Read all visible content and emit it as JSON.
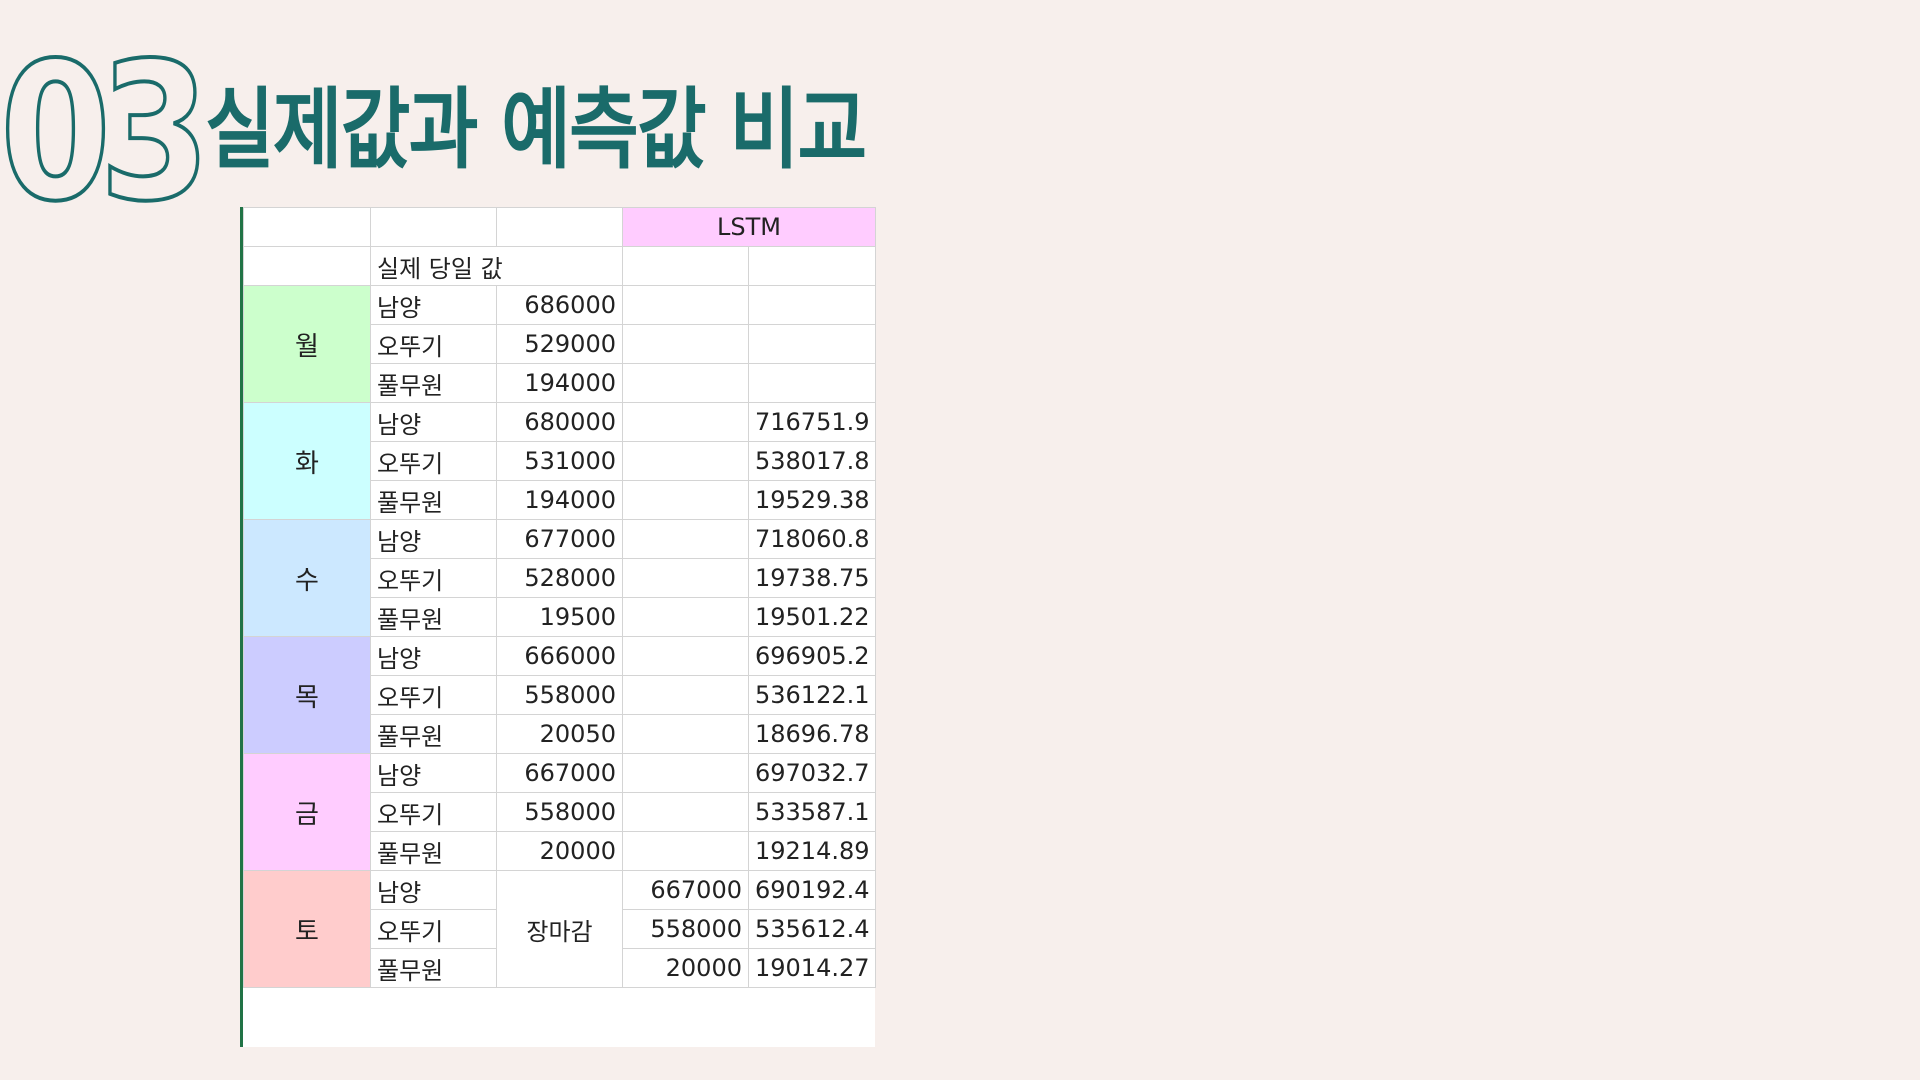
{
  "header": {
    "number": "03",
    "title": "실제값과 예측값 비교"
  },
  "colors": {
    "background": "#f7efec",
    "accent": "#1a6b6a",
    "lstm_header": "#ffccff",
    "mon": "#ccffcc",
    "tue": "#ccffff",
    "wed": "#cce8ff",
    "thu": "#ccccff",
    "fri": "#ffccff",
    "sat": "#ffcccc"
  },
  "table": {
    "lstm_label": "LSTM",
    "actual_label": "실제 당일 값",
    "closed_label": "장마감",
    "days": [
      {
        "day": "월",
        "rows": [
          {
            "company": "남양",
            "actual": "686000",
            "col4": "",
            "lstm": ""
          },
          {
            "company": "오뚜기",
            "actual": "529000",
            "col4": "",
            "lstm": ""
          },
          {
            "company": "풀무원",
            "actual": "194000",
            "col4": "",
            "lstm": ""
          }
        ]
      },
      {
        "day": "화",
        "rows": [
          {
            "company": "남양",
            "actual": "680000",
            "col4": "",
            "lstm": "716751.9"
          },
          {
            "company": "오뚜기",
            "actual": "531000",
            "col4": "",
            "lstm": "538017.8"
          },
          {
            "company": "풀무원",
            "actual": "194000",
            "col4": "",
            "lstm": "19529.38"
          }
        ]
      },
      {
        "day": "수",
        "rows": [
          {
            "company": "남양",
            "actual": "677000",
            "col4": "",
            "lstm": "718060.8"
          },
          {
            "company": "오뚜기",
            "actual": "528000",
            "col4": "",
            "lstm": "19738.75"
          },
          {
            "company": "풀무원",
            "actual": "19500",
            "col4": "",
            "lstm": "19501.22"
          }
        ]
      },
      {
        "day": "목",
        "rows": [
          {
            "company": "남양",
            "actual": "666000",
            "col4": "",
            "lstm": "696905.2"
          },
          {
            "company": "오뚜기",
            "actual": "558000",
            "col4": "",
            "lstm": "536122.1"
          },
          {
            "company": "풀무원",
            "actual": "20050",
            "col4": "",
            "lstm": "18696.78"
          }
        ]
      },
      {
        "day": "금",
        "rows": [
          {
            "company": "남양",
            "actual": "667000",
            "col4": "",
            "lstm": "697032.7"
          },
          {
            "company": "오뚜기",
            "actual": "558000",
            "col4": "",
            "lstm": "533587.1"
          },
          {
            "company": "풀무원",
            "actual": "20000",
            "col4": "",
            "lstm": "19214.89"
          }
        ]
      },
      {
        "day": "토",
        "rows": [
          {
            "company": "남양",
            "actual": "",
            "col4": "667000",
            "lstm": "690192.4"
          },
          {
            "company": "오뚜기",
            "actual": "",
            "col4": "558000",
            "lstm": "535612.4"
          },
          {
            "company": "풀무원",
            "actual": "",
            "col4": "20000",
            "lstm": "19014.27"
          }
        ]
      }
    ]
  }
}
